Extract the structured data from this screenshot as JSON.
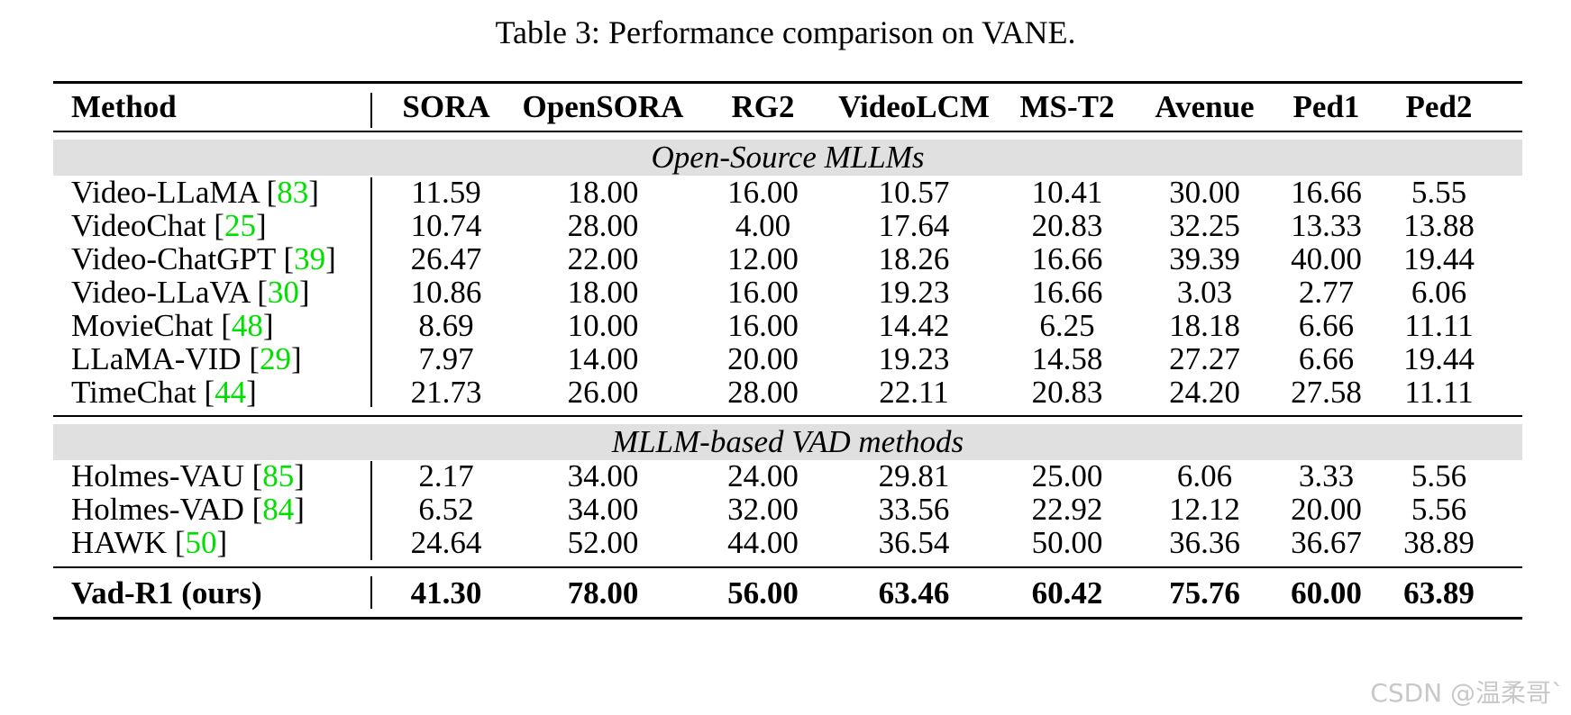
{
  "caption": "Table 3: Performance comparison on VANE.",
  "header": {
    "method": "Method",
    "cols": [
      "SORA",
      "OpenSORA",
      "RG2",
      "VideoLCM",
      "MS-T2",
      "Avenue",
      "Ped1",
      "Ped2"
    ]
  },
  "sections": [
    {
      "title": "Open-Source MLLMs",
      "rows": [
        {
          "method": "Video-LLaMA",
          "ref": "83",
          "values": [
            "11.59",
            "18.00",
            "16.00",
            "10.57",
            "10.41",
            "30.00",
            "16.66",
            "5.55"
          ]
        },
        {
          "method": "VideoChat",
          "ref": "25",
          "values": [
            "10.74",
            "28.00",
            "4.00",
            "17.64",
            "20.83",
            "32.25",
            "13.33",
            "13.88"
          ]
        },
        {
          "method": "Video-ChatGPT",
          "ref": "39",
          "values": [
            "26.47",
            "22.00",
            "12.00",
            "18.26",
            "16.66",
            "39.39",
            "40.00",
            "19.44"
          ]
        },
        {
          "method": "Video-LLaVA",
          "ref": "30",
          "values": [
            "10.86",
            "18.00",
            "16.00",
            "19.23",
            "16.66",
            "3.03",
            "2.77",
            "6.06"
          ]
        },
        {
          "method": "MovieChat",
          "ref": "48",
          "values": [
            "8.69",
            "10.00",
            "16.00",
            "14.42",
            "6.25",
            "18.18",
            "6.66",
            "11.11"
          ]
        },
        {
          "method": "LLaMA-VID",
          "ref": "29",
          "values": [
            "7.97",
            "14.00",
            "20.00",
            "19.23",
            "14.58",
            "27.27",
            "6.66",
            "19.44"
          ]
        },
        {
          "method": "TimeChat",
          "ref": "44",
          "values": [
            "21.73",
            "26.00",
            "28.00",
            "22.11",
            "20.83",
            "24.20",
            "27.58",
            "11.11"
          ]
        }
      ]
    },
    {
      "title": "MLLM-based VAD methods",
      "rows": [
        {
          "method": "Holmes-VAU",
          "ref": "85",
          "values": [
            "2.17",
            "34.00",
            "24.00",
            "29.81",
            "25.00",
            "6.06",
            "3.33",
            "5.56"
          ]
        },
        {
          "method": "Holmes-VAD",
          "ref": "84",
          "values": [
            "6.52",
            "34.00",
            "32.00",
            "33.56",
            "22.92",
            "12.12",
            "20.00",
            "5.56"
          ]
        },
        {
          "method": "HAWK",
          "ref": "50",
          "values": [
            "24.64",
            "52.00",
            "44.00",
            "36.54",
            "50.00",
            "36.36",
            "36.67",
            "38.89"
          ]
        }
      ]
    }
  ],
  "ours": {
    "method": "Vad-R1 (ours)",
    "values": [
      "41.30",
      "78.00",
      "56.00",
      "63.46",
      "60.42",
      "75.76",
      "60.00",
      "63.89"
    ]
  },
  "watermark": "CSDN @温柔哥`",
  "colors": {
    "ref": "#00e000",
    "section_bg": "#e0e0e0"
  }
}
